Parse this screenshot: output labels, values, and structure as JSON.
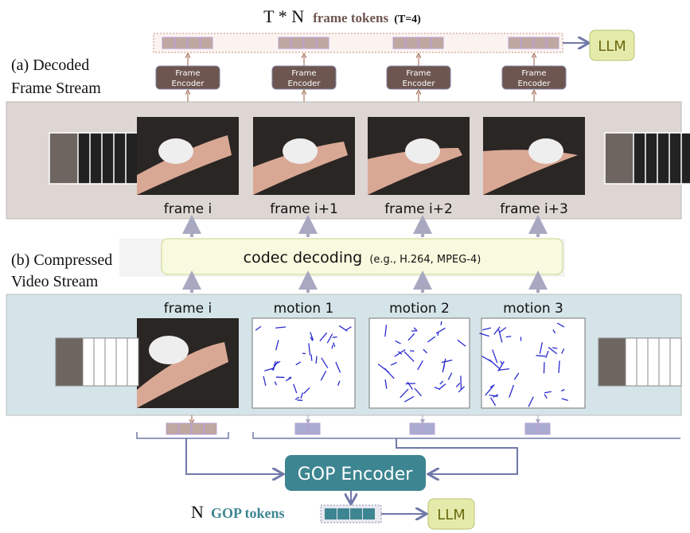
{
  "title": {
    "prefix": "T * N",
    "main": "frame tokens",
    "suffix": "(T=4)"
  },
  "llm_label": "LLM",
  "frame_encoder": {
    "line1": "Frame",
    "line2": "Encoder"
  },
  "section_a": {
    "line1": "(a) Decoded",
    "line2": "Frame Stream"
  },
  "section_b": {
    "line1": "(b) Compressed",
    "line2": "Video Stream"
  },
  "decoded_frames": [
    "frame i",
    "frame i+1",
    "frame i+2",
    "frame i+3"
  ],
  "codec": {
    "main": "codec decoding",
    "example": "(e.g., H.264, MPEG-4)"
  },
  "compressed_items": [
    "frame i",
    "motion 1",
    "motion 2",
    "motion 3"
  ],
  "gop_encoder": "GOP Encoder",
  "gop_tokens": {
    "prefix": "N",
    "main": "GOP tokens"
  },
  "colors": {
    "frame_token": "#bfa8a0",
    "motion_token": "#a9acd0",
    "gop": "#3d8591",
    "encoder": "#6e5650",
    "llm": "#e4ebaa",
    "panel_a": "#ddd6d2",
    "panel_b": "#d4e4e8",
    "codec": "#f8fadf"
  }
}
